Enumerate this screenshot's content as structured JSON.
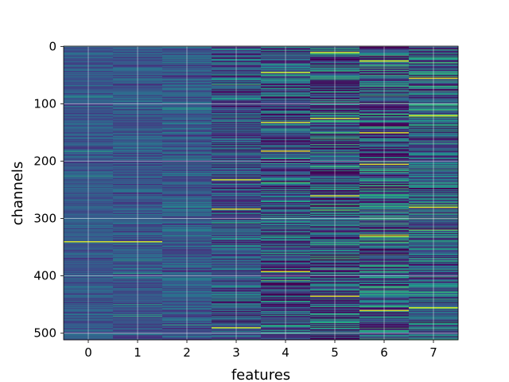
{
  "chart_data": {
    "type": "heatmap",
    "title": "",
    "xlabel": "features",
    "ylabel": "channels",
    "x_categories": [
      0,
      1,
      2,
      3,
      4,
      5,
      6,
      7
    ],
    "x_tick_labels": [
      "0",
      "1",
      "2",
      "3",
      "4",
      "5",
      "6",
      "7"
    ],
    "y_tick_values": [
      0,
      100,
      200,
      300,
      400,
      500
    ],
    "y_tick_labels": [
      "0",
      "100",
      "200",
      "300",
      "400",
      "500"
    ],
    "ylim": [
      511,
      0
    ],
    "n_rows": 512,
    "grid": true,
    "colormap": "viridis",
    "column_variability": [
      0.25,
      0.3,
      0.35,
      0.6,
      0.75,
      0.95,
      0.85,
      0.75
    ],
    "column_base": [
      0.28,
      0.28,
      0.29,
      0.27,
      0.26,
      0.24,
      0.3,
      0.32
    ],
    "highlights": [
      {
        "feature": 0,
        "channel": 340
      },
      {
        "feature": 1,
        "channel": 340
      },
      {
        "feature": 3,
        "channel": 232
      },
      {
        "feature": 3,
        "channel": 283
      },
      {
        "feature": 3,
        "channel": 490
      },
      {
        "feature": 4,
        "channel": 45
      },
      {
        "feature": 4,
        "channel": 132
      },
      {
        "feature": 4,
        "channel": 182
      },
      {
        "feature": 4,
        "channel": 392
      },
      {
        "feature": 5,
        "channel": 10
      },
      {
        "feature": 5,
        "channel": 125
      },
      {
        "feature": 5,
        "channel": 260
      },
      {
        "feature": 5,
        "channel": 435
      },
      {
        "feature": 6,
        "channel": 25
      },
      {
        "feature": 6,
        "channel": 150
      },
      {
        "feature": 6,
        "channel": 205
      },
      {
        "feature": 6,
        "channel": 330
      },
      {
        "feature": 6,
        "channel": 460
      },
      {
        "feature": 7,
        "channel": 55
      },
      {
        "feature": 7,
        "channel": 120
      },
      {
        "feature": 7,
        "channel": 280
      },
      {
        "feature": 7,
        "channel": 455
      }
    ]
  }
}
